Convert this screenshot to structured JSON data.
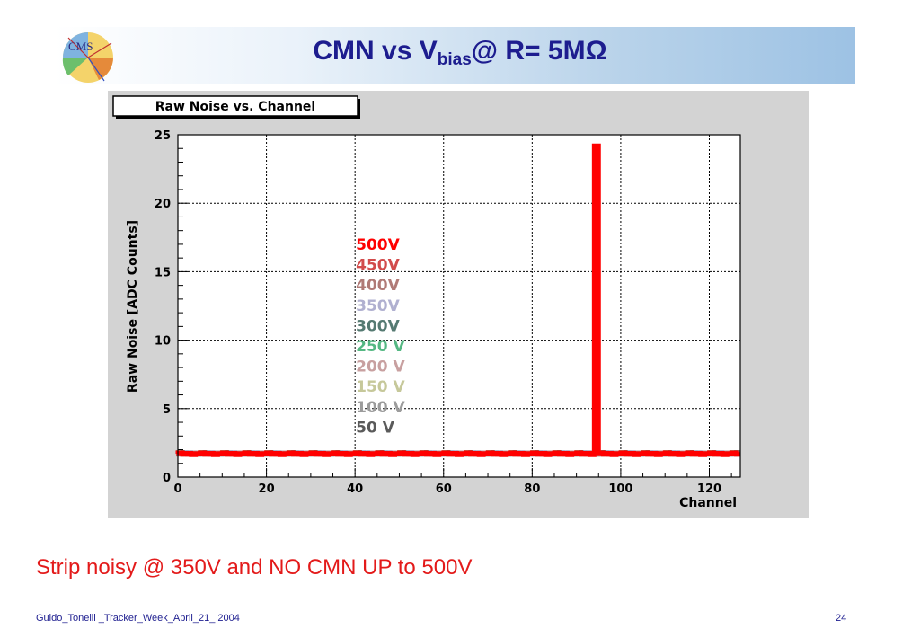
{
  "slide": {
    "title_main": "CMN vs V",
    "title_sub": "bias",
    "title_tail": "@ R= 5MΩ",
    "caption": "Strip noisy @ 350V and NO CMN UP to 500V",
    "footer": "Guido_Tonelli _Tracker_Week_April_21_ 2004",
    "page_number": "24",
    "logo_text": "CMS"
  },
  "chart_data": {
    "type": "line",
    "title": "Raw Noise vs. Channel",
    "xlabel": "Channel",
    "ylabel": "Raw Noise [ADC Counts]",
    "xlim": [
      0,
      127
    ],
    "ylim": [
      0,
      25
    ],
    "xticks": [
      0,
      20,
      40,
      60,
      80,
      100,
      120
    ],
    "yticks": [
      0,
      5,
      10,
      15,
      20,
      25
    ],
    "grid": true,
    "legend": "center",
    "series": [
      {
        "name": "500V",
        "color": "#ff0000",
        "baseline": 1.7,
        "spike_channel": 95,
        "spike_value": 24.2
      },
      {
        "name": "450V",
        "color": "#d24b4b",
        "baseline": 1.7
      },
      {
        "name": "400V",
        "color": "#b07a76",
        "baseline": 1.7
      },
      {
        "name": "350V",
        "color": "#b0b0d0",
        "baseline": 1.75
      },
      {
        "name": "300V",
        "color": "#557a72",
        "baseline": 1.75
      },
      {
        "name": "250 V",
        "color": "#55b883",
        "baseline": 1.75
      },
      {
        "name": "200 V",
        "color": "#c8a0a0",
        "baseline": 1.7
      },
      {
        "name": "150 V",
        "color": "#c6c89a",
        "baseline": 1.7
      },
      {
        "name": "100 V",
        "color": "#9c9c9c",
        "baseline": 1.7
      },
      {
        "name": "50 V",
        "color": "#5a5a5a",
        "baseline": 1.7
      }
    ]
  }
}
